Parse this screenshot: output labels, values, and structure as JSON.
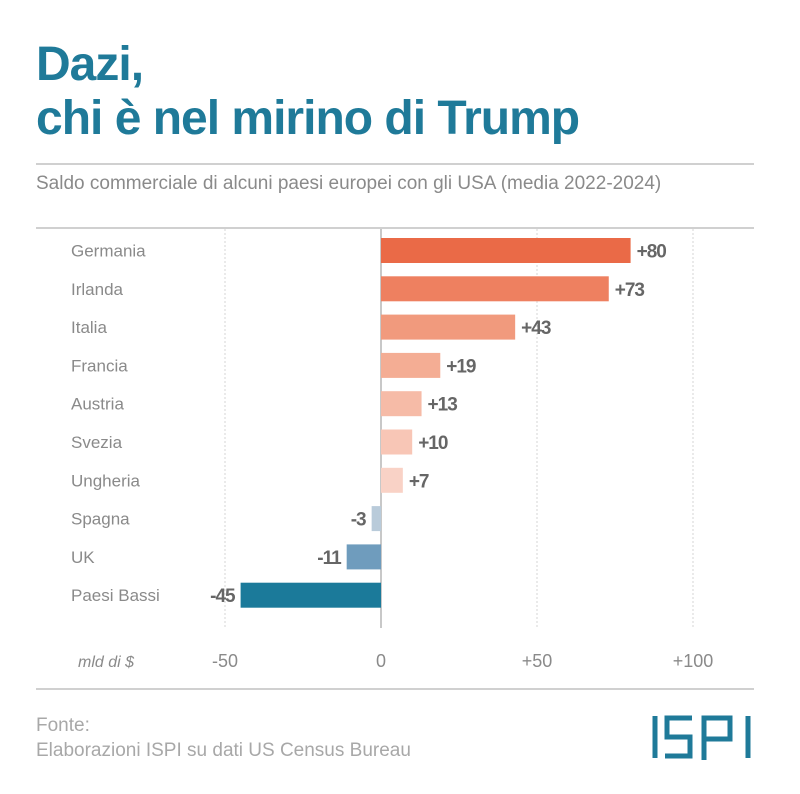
{
  "header": {
    "title_line1": "Dazi,",
    "title_line2": "chi è nel mirino di Trump",
    "subtitle": "Saldo commerciale di alcuni paesi europei con gli USA (media 2022-2024)"
  },
  "chart_data": {
    "type": "bar",
    "orientation": "horizontal",
    "title": "Dazi, chi è nel mirino di Trump",
    "subtitle": "Saldo commerciale di alcuni paesi europei con gli USA (media 2022-2024)",
    "xlabel": "mld di $",
    "ylabel": "",
    "categories": [
      "Germania",
      "Irlanda",
      "Italia",
      "Francia",
      "Austria",
      "Svezia",
      "Ungheria",
      "Spagna",
      "UK",
      "Paesi Bassi"
    ],
    "values": [
      80,
      73,
      43,
      19,
      13,
      10,
      7,
      -3,
      -11,
      -45
    ],
    "value_labels": [
      "+80",
      "+73",
      "+43",
      "+19",
      "+13",
      "+10",
      "+7",
      "-3",
      "-11",
      "-45"
    ],
    "colors": [
      "#ea6a47",
      "#ee8060",
      "#f19a7d",
      "#f4ad94",
      "#f6bba7",
      "#f8c6b6",
      "#f9d2c6",
      "#b9cbda",
      "#6f9cbd",
      "#1b7a9a"
    ],
    "xlim": [
      -50,
      110
    ],
    "xticks": [
      -50,
      0,
      50,
      100
    ],
    "xtick_labels": [
      "-50",
      "0",
      "+50",
      "+100"
    ],
    "grid": true
  },
  "footer": {
    "source_label": "Fonte:",
    "source_text": "Elaborazioni ISPI su dati US Census Bureau",
    "logo_text": "ISPI"
  },
  "colors": {
    "brand": "#1f7a99",
    "text_gray": "#8a8a8a",
    "value_gray": "#666666"
  }
}
